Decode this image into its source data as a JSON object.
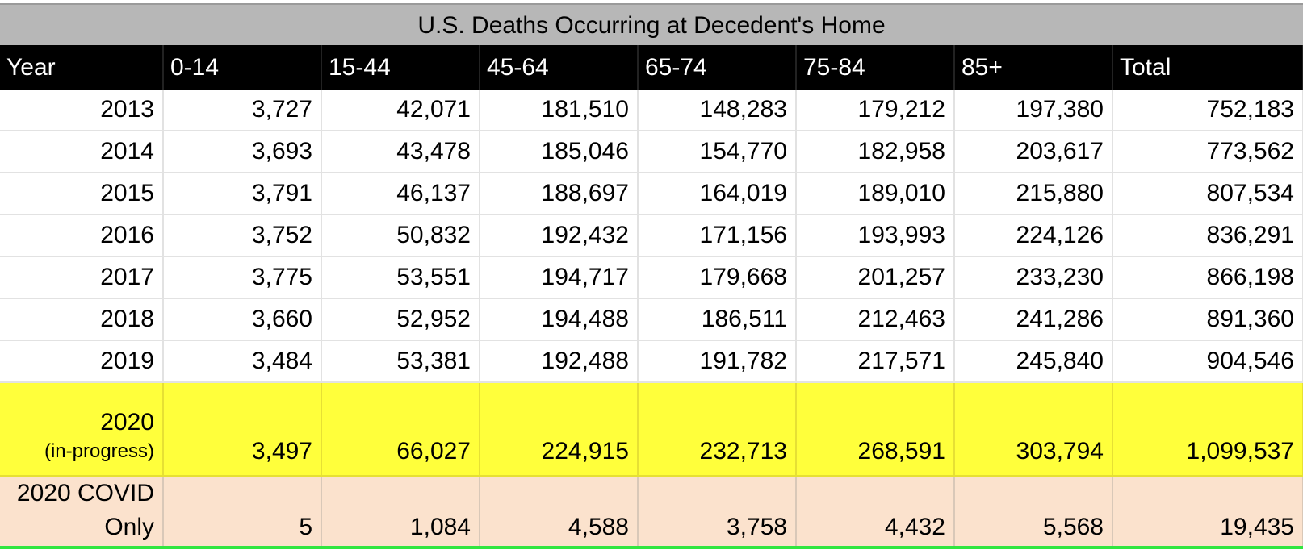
{
  "title": "U.S. Deaths Occurring at Decedent's Home",
  "columns": [
    "Year",
    "0-14",
    "15-44",
    "45-64",
    "65-74",
    "75-84",
    "85+",
    "Total"
  ],
  "rows": [
    {
      "year": "2013",
      "values": [
        "3,727",
        "42,071",
        "181,510",
        "148,283",
        "179,212",
        "197,380",
        "752,183"
      ]
    },
    {
      "year": "2014",
      "values": [
        "3,693",
        "43,478",
        "185,046",
        "154,770",
        "182,958",
        "203,617",
        "773,562"
      ]
    },
    {
      "year": "2015",
      "values": [
        "3,791",
        "46,137",
        "188,697",
        "164,019",
        "189,010",
        "215,880",
        "807,534"
      ]
    },
    {
      "year": "2016",
      "values": [
        "3,752",
        "50,832",
        "192,432",
        "171,156",
        "193,993",
        "224,126",
        "836,291"
      ]
    },
    {
      "year": "2017",
      "values": [
        "3,775",
        "53,551",
        "194,717",
        "179,668",
        "201,257",
        "233,230",
        "866,198"
      ]
    },
    {
      "year": "2018",
      "values": [
        "3,660",
        "52,952",
        "194,488",
        "186,511",
        "212,463",
        "241,286",
        "891,360"
      ]
    },
    {
      "year": "2019",
      "values": [
        "3,484",
        "53,381",
        "192,488",
        "191,782",
        "217,571",
        "245,840",
        "904,546"
      ]
    }
  ],
  "in_progress_row": {
    "year": "2020",
    "note": "(in-progress)",
    "values": [
      "3,497",
      "66,027",
      "224,915",
      "232,713",
      "268,591",
      "303,794",
      "1,099,537"
    ]
  },
  "covid_row": {
    "label_line1": "2020 COVID",
    "label_line2": "Only",
    "values": [
      "5",
      "1,084",
      "4,588",
      "3,758",
      "4,432",
      "5,568",
      "19,435"
    ]
  },
  "colors": {
    "title_bg": "#b7b7b7",
    "header_bg": "#000000",
    "highlight_yellow": "#ffff3b",
    "covid_peach": "#fbe2cd",
    "green_border": "#31e640"
  }
}
